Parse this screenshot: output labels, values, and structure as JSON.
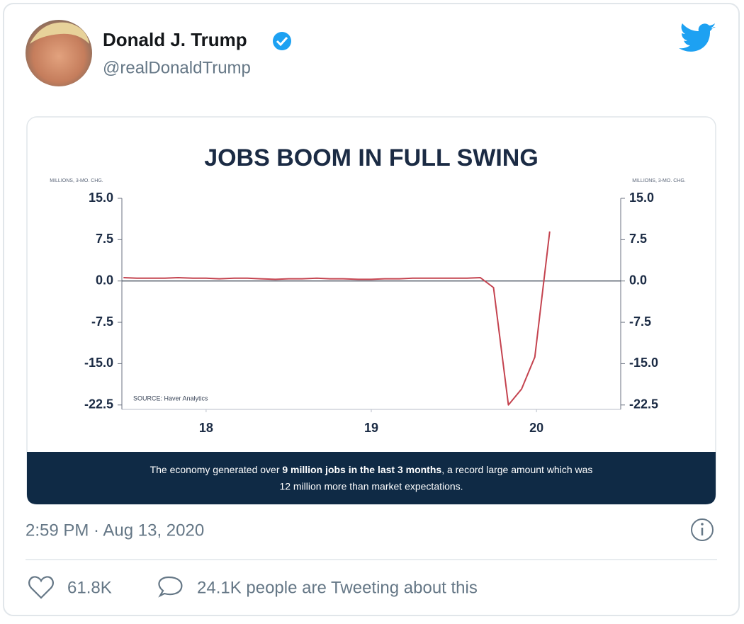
{
  "tweet": {
    "name": "Donald J. Trump",
    "handle": "@realDonaldTrump",
    "timestamp": "2:59 PM · Aug 13, 2020",
    "likes": "61.8K",
    "tweeting": "24.1K people are Tweeting about this"
  },
  "chart_data": {
    "type": "line",
    "title": "JOBS BOOM IN FULL SWING",
    "y_label": "MILLIONS, 3-MO. CHG.",
    "y2_label": "MILLIONS, 3-MO. CHG.",
    "source": "SOURCE: Haver Analytics",
    "x": [
      17.5,
      17.58,
      17.67,
      17.75,
      17.83,
      17.92,
      18.0,
      18.08,
      18.17,
      18.25,
      18.33,
      18.42,
      18.5,
      18.58,
      18.67,
      18.75,
      18.83,
      18.92,
      19.0,
      19.08,
      19.17,
      19.25,
      19.33,
      19.42,
      19.5,
      19.58,
      19.66,
      19.74,
      19.83,
      19.91,
      19.99,
      20.08
    ],
    "values": [
      0.6,
      0.5,
      0.5,
      0.5,
      0.6,
      0.5,
      0.5,
      0.4,
      0.5,
      0.5,
      0.4,
      0.3,
      0.4,
      0.4,
      0.5,
      0.4,
      0.4,
      0.3,
      0.3,
      0.4,
      0.4,
      0.5,
      0.5,
      0.5,
      0.5,
      0.5,
      0.6,
      -1.2,
      -22.5,
      -19.6,
      -13.8,
      9.0
    ],
    "color": "#c4434f",
    "xlim": [
      17.49,
      20.51
    ],
    "xticks": [
      18,
      19,
      20
    ],
    "ylim": [
      -23.3,
      15
    ],
    "yticks": [
      {
        "value": 15,
        "label": "15.0"
      },
      {
        "value": 7.5,
        "label": "7.5"
      },
      {
        "value": 0,
        "label": "0.0"
      },
      {
        "value": -7.5,
        "label": "-7.5"
      },
      {
        "value": -15,
        "label": "-15.0"
      },
      {
        "value": -22.5,
        "label": "-22.5"
      }
    ],
    "y2lim": [
      -23.3,
      15
    ],
    "y2ticks": [
      {
        "value": 15,
        "label": "15.0"
      },
      {
        "value": 7.5,
        "label": "7.5"
      },
      {
        "value": 0,
        "label": "0.0"
      },
      {
        "value": -7.5,
        "label": "-7.5"
      },
      {
        "value": -15,
        "label": "-15.0"
      },
      {
        "value": -22.5,
        "label": "-22.5"
      }
    ],
    "caption": {
      "pre": "The economy generated over ",
      "bold": "9 million jobs in the last 3 months",
      "post": ", a record large amount which was",
      "line2": "12 million more than market expectations."
    }
  }
}
